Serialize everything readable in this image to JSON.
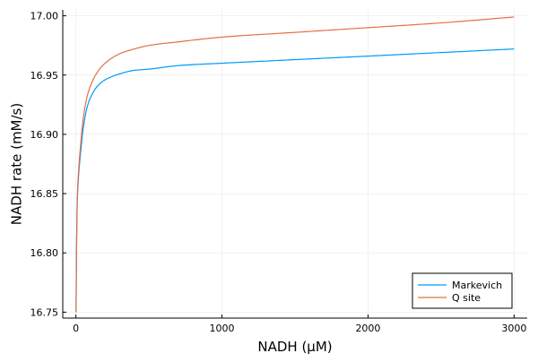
{
  "chart_data": {
    "type": "line",
    "title": "",
    "xlabel": "NADH (μM)",
    "ylabel": "NADH rate (mM/s)",
    "xlim": [
      -90,
      3090
    ],
    "ylim": [
      16.745,
      17.005
    ],
    "xticks": [
      0,
      1000,
      2000,
      3000
    ],
    "xtick_labels": [
      "0",
      "1000",
      "2000",
      "3000"
    ],
    "yticks": [
      16.75,
      16.8,
      16.85,
      16.9,
      16.95,
      17.0
    ],
    "ytick_labels": [
      "16.75",
      "16.80",
      "16.85",
      "16.90",
      "16.95",
      "17.00"
    ],
    "grid": true,
    "legend_position": "bottom-right",
    "series": [
      {
        "name": "Markevich",
        "color": "#009AFA",
        "x": [
          1,
          5,
          10,
          20,
          30,
          50,
          75,
          100,
          150,
          200,
          300,
          400,
          500,
          700,
          1000,
          1500,
          2000,
          2500,
          3000
        ],
        "y": [
          16.75,
          16.81,
          16.845,
          16.868,
          16.882,
          16.905,
          16.922,
          16.931,
          16.941,
          16.946,
          16.951,
          16.954,
          16.955,
          16.958,
          16.96,
          16.963,
          16.966,
          16.969,
          16.972
        ]
      },
      {
        "name": "Q site",
        "color": "#E26F46",
        "x": [
          1,
          5,
          10,
          20,
          30,
          50,
          75,
          100,
          150,
          200,
          300,
          400,
          500,
          700,
          1000,
          1500,
          2000,
          2500,
          3000
        ],
        "y": [
          16.75,
          16.81,
          16.848,
          16.872,
          16.888,
          16.913,
          16.931,
          16.941,
          16.953,
          16.96,
          16.968,
          16.972,
          16.975,
          16.978,
          16.982,
          16.986,
          16.99,
          16.994,
          16.999
        ]
      }
    ]
  }
}
